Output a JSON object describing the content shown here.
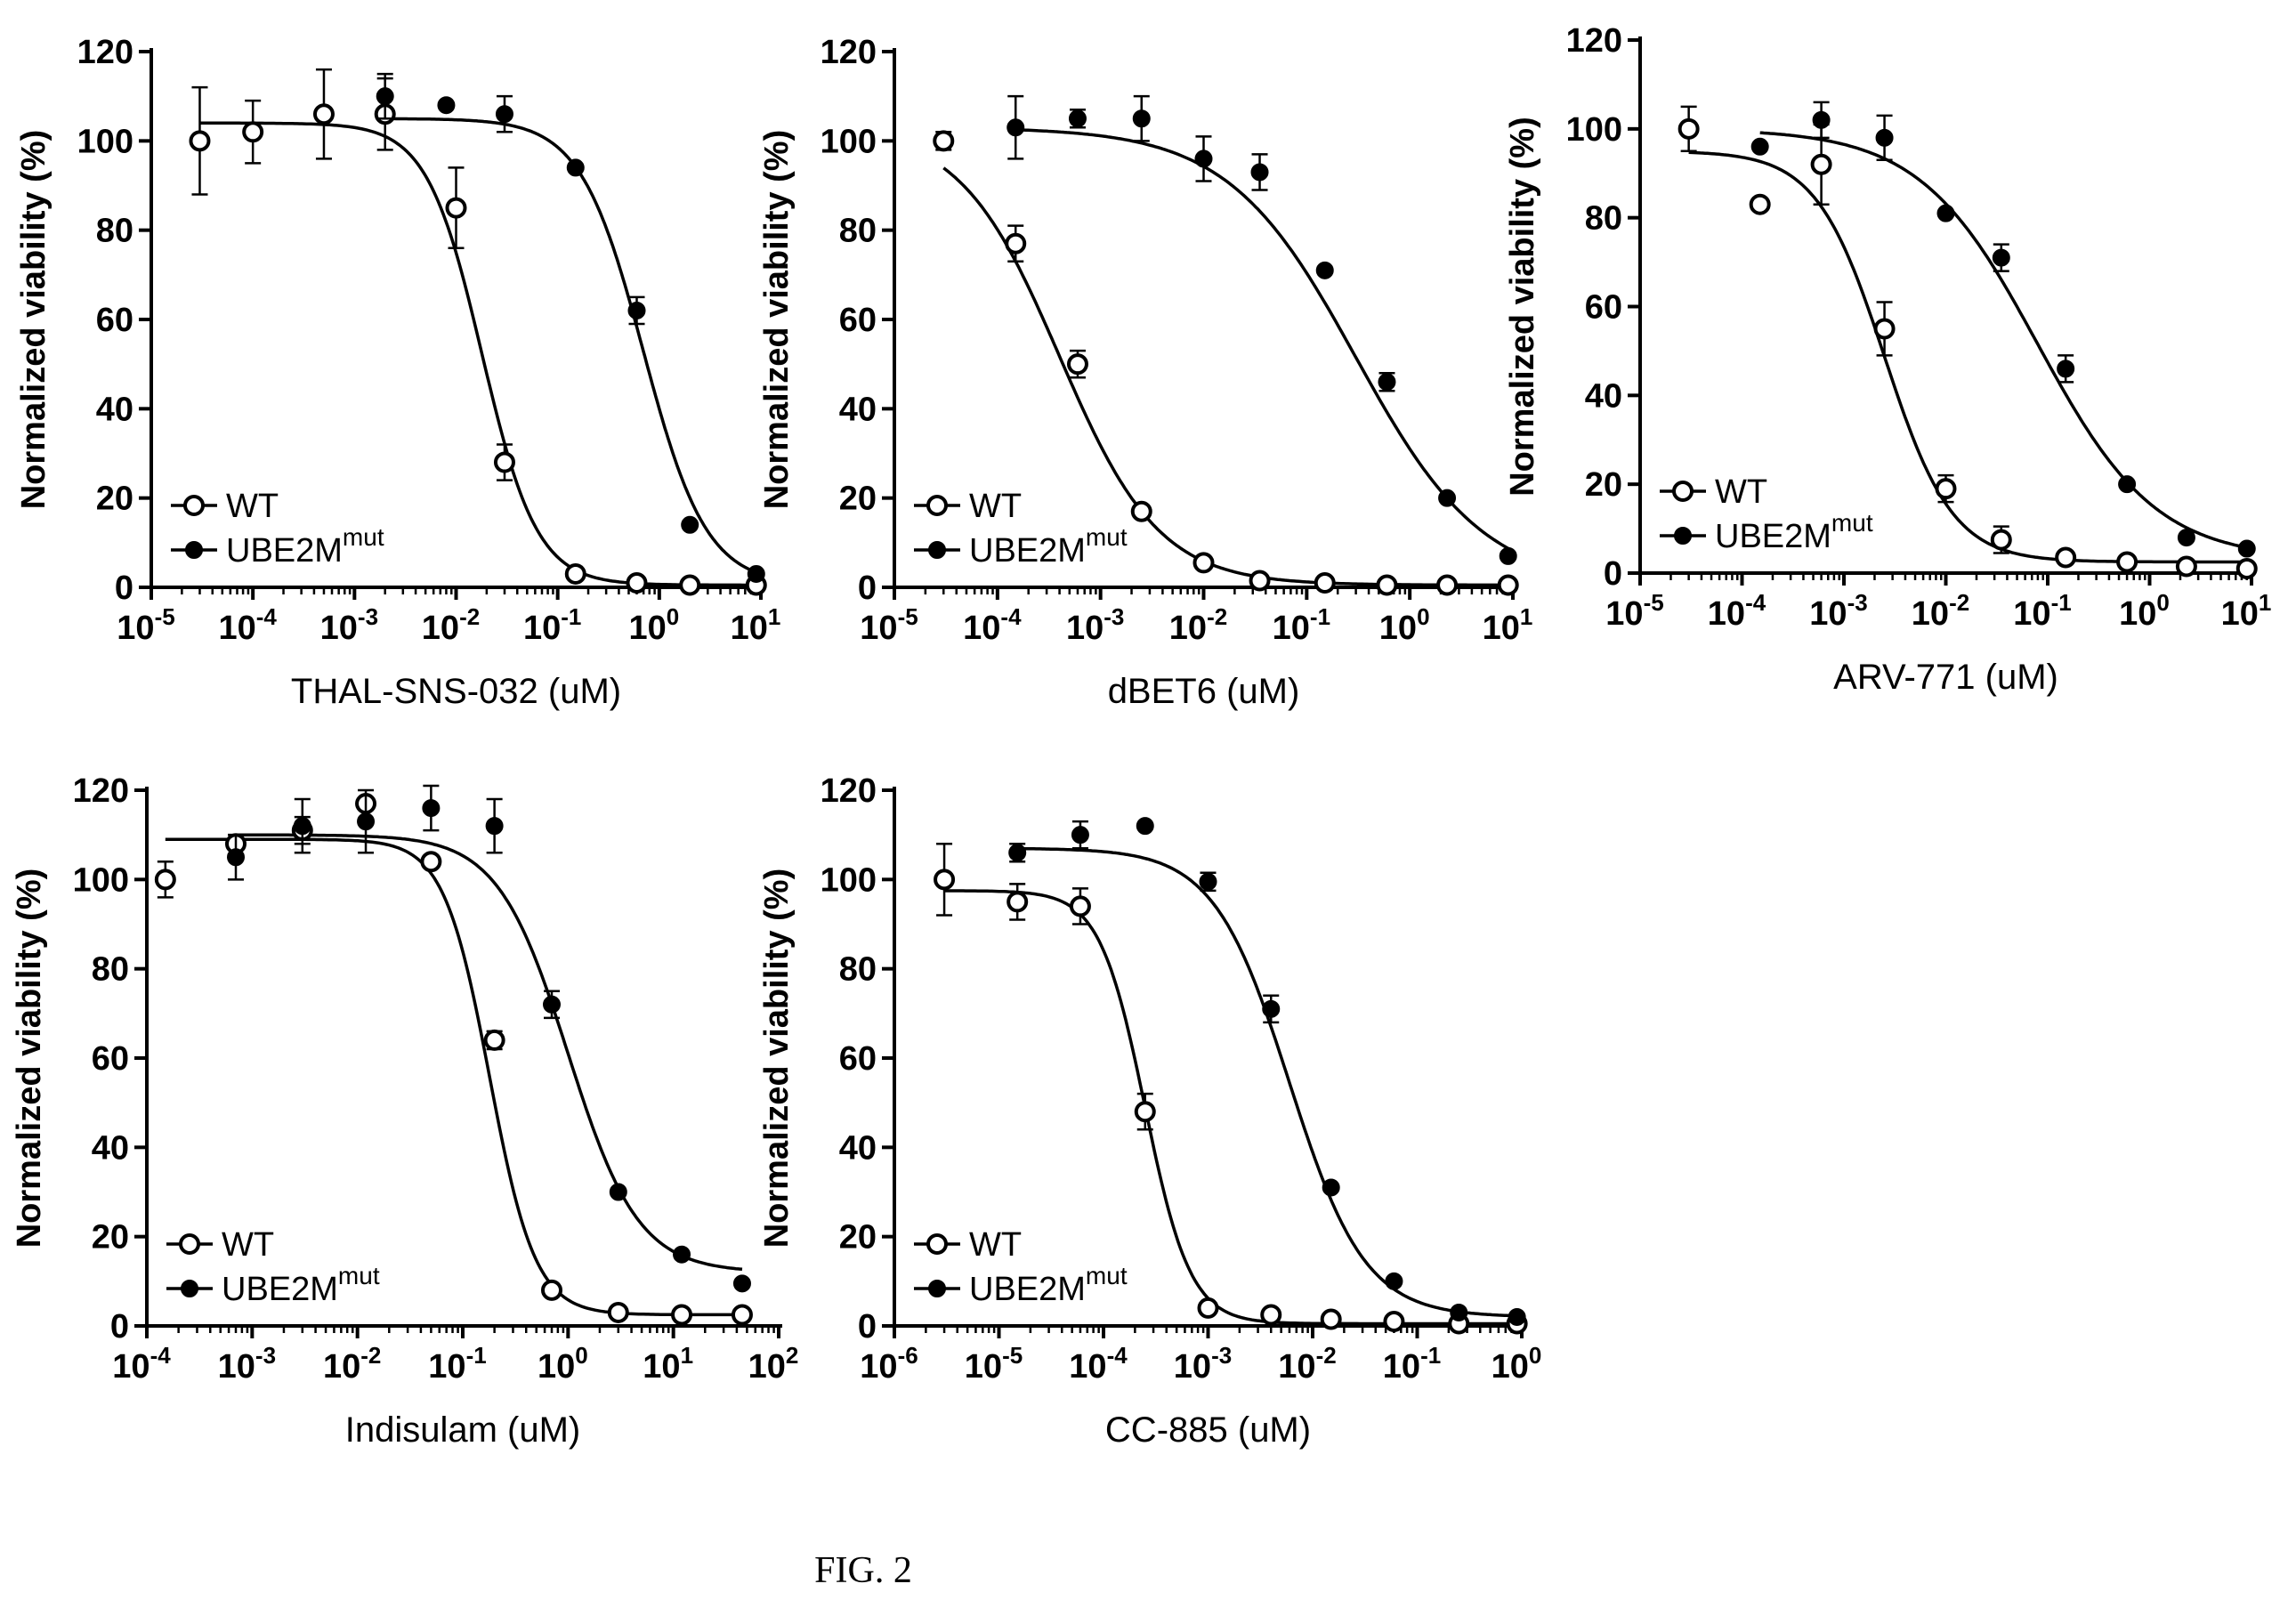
{
  "figure_caption": "FIG. 2",
  "chart_data": [
    {
      "type": "scatter",
      "xlabel": "THAL-SNS-032 (uM)",
      "ylabel": "Normalized viability (%)",
      "x_scale": "log",
      "xlim_exp": [
        -5,
        1
      ],
      "ylim": [
        0,
        120
      ],
      "yticks": [
        0,
        20,
        40,
        60,
        80,
        100,
        120
      ],
      "legend_position": "bottom-left",
      "series": [
        {
          "name": "WT",
          "marker": "open-circle",
          "x": [
            3e-05,
            0.0001,
            0.0005,
            0.002,
            0.01,
            0.03,
            0.15,
            0.6,
            2,
            9
          ],
          "y": [
            100,
            102,
            106,
            106,
            85,
            28,
            3,
            1,
            0.5,
            0.5
          ],
          "err": [
            12,
            7,
            10,
            8,
            9,
            4,
            1,
            1,
            0.5,
            0.5
          ],
          "fit": {
            "top": 104,
            "bottom": 0.5,
            "ec50": 0.018,
            "hill": 1.6
          }
        },
        {
          "name": "UBE2M",
          "name_sup": "mut",
          "marker": "filled-circle",
          "x": [
            0.002,
            0.008,
            0.03,
            0.15,
            0.6,
            2,
            9
          ],
          "y": [
            110,
            108,
            106,
            94,
            62,
            14,
            3
          ],
          "err": [
            5,
            0,
            4,
            0,
            3,
            0,
            0
          ],
          "fit": {
            "top": 105,
            "bottom": 0.5,
            "ec50": 0.7,
            "hill": 1.4
          }
        }
      ]
    },
    {
      "type": "scatter",
      "xlabel": "dBET6 (uM)",
      "ylabel": "Normalized viability (%)",
      "x_scale": "log",
      "xlim_exp": [
        -5,
        1
      ],
      "ylim": [
        0,
        120
      ],
      "yticks": [
        0,
        20,
        40,
        60,
        80,
        100,
        120
      ],
      "legend_position": "bottom-left",
      "series": [
        {
          "name": "WT",
          "marker": "open-circle",
          "x": [
            3e-05,
            0.00015,
            0.0006,
            0.0025,
            0.01,
            0.035,
            0.15,
            0.6,
            2.3,
            9
          ],
          "y": [
            100,
            77,
            50,
            17,
            5.5,
            1.5,
            1,
            0.5,
            0.5,
            0.5
          ],
          "err": [
            2,
            4,
            3,
            0,
            0,
            0,
            0,
            0,
            0,
            0
          ],
          "fit": {
            "top": 103,
            "bottom": 0.5,
            "ec50": 0.0004,
            "hill": 0.9
          }
        },
        {
          "name": "UBE2M",
          "name_sup": "mut",
          "marker": "filled-circle",
          "x": [
            0.00015,
            0.0006,
            0.0025,
            0.01,
            0.035,
            0.15,
            0.6,
            2.3,
            9
          ],
          "y": [
            103,
            105,
            105,
            96,
            93,
            71,
            46,
            20,
            7
          ],
          "err": [
            7,
            2,
            5,
            5,
            4,
            0,
            2,
            0,
            0
          ],
          "fit": {
            "top": 103,
            "bottom": 0,
            "ec50": 0.3,
            "hill": 0.7
          }
        }
      ]
    },
    {
      "type": "scatter",
      "xlabel": "ARV-771 (uM)",
      "ylabel": "Normalized viability (%)",
      "x_scale": "log",
      "xlim_exp": [
        -5,
        1
      ],
      "ylim": [
        0,
        120
      ],
      "yticks": [
        0,
        20,
        40,
        60,
        80,
        100,
        120
      ],
      "legend_position": "bottom-left",
      "series": [
        {
          "name": "WT",
          "marker": "open-circle",
          "x": [
            3e-05,
            0.00015,
            0.0006,
            0.0025,
            0.01,
            0.035,
            0.15,
            0.6,
            2.3,
            9
          ],
          "y": [
            100,
            83,
            92,
            55,
            19,
            7.5,
            3.5,
            2.5,
            1.5,
            1
          ],
          "err": [
            5,
            0,
            9,
            6,
            3,
            3,
            0,
            0,
            0,
            0
          ],
          "fit": {
            "top": 95,
            "bottom": 2.5,
            "ec50": 0.0025,
            "hill": 1.3
          }
        },
        {
          "name": "UBE2M",
          "name_sup": "mut",
          "marker": "filled-circle",
          "x": [
            0.00015,
            0.0006,
            0.0025,
            0.01,
            0.035,
            0.15,
            0.6,
            2.3,
            9
          ],
          "y": [
            96,
            102,
            98,
            81,
            71,
            46,
            20,
            8,
            5.5
          ],
          "err": [
            0,
            4,
            5,
            0,
            3,
            3,
            0,
            0,
            0
          ],
          "fit": {
            "top": 100,
            "bottom": 3,
            "ec50": 0.08,
            "hill": 0.75
          }
        }
      ]
    },
    {
      "type": "scatter",
      "xlabel": "Indisulam (uM)",
      "ylabel": "Normalized viability (%)",
      "x_scale": "log",
      "xlim_exp": [
        -4,
        2
      ],
      "ylim": [
        0,
        120
      ],
      "yticks": [
        0,
        20,
        40,
        60,
        80,
        100,
        120
      ],
      "legend_position": "bottom-left",
      "series": [
        {
          "name": "WT",
          "marker": "open-circle",
          "x": [
            0.00015,
            0.0007,
            0.003,
            0.012,
            0.05,
            0.2,
            0.7,
            3,
            12,
            45
          ],
          "y": [
            100,
            108,
            111,
            117,
            104,
            64,
            8,
            3,
            2.5,
            2.5
          ],
          "err": [
            4,
            0,
            3,
            0,
            0,
            2,
            0,
            0,
            0,
            0
          ],
          "fit": {
            "top": 109,
            "bottom": 2.5,
            "ec50": 0.18,
            "hill": 2.0
          }
        },
        {
          "name": "UBE2M",
          "name_sup": "mut",
          "marker": "filled-circle",
          "x": [
            0.0007,
            0.003,
            0.012,
            0.05,
            0.2,
            0.7,
            3,
            12,
            45
          ],
          "y": [
            105,
            112,
            113,
            116,
            112,
            72,
            30,
            16,
            9.5
          ],
          "err": [
            5,
            6,
            7,
            5,
            6,
            3,
            0,
            0,
            0
          ],
          "fit": {
            "top": 110,
            "bottom": 12,
            "ec50": 1.0,
            "hill": 1.3
          }
        }
      ]
    },
    {
      "type": "scatter",
      "xlabel": "CC-885 (uM)",
      "ylabel": "Normalized viability (%)",
      "x_scale": "log",
      "xlim_exp": [
        -6,
        0
      ],
      "ylim": [
        0,
        120
      ],
      "yticks": [
        0,
        20,
        40,
        60,
        80,
        100,
        120
      ],
      "legend_position": "bottom-left",
      "series": [
        {
          "name": "WT",
          "marker": "open-circle",
          "x": [
            3e-06,
            1.5e-05,
            6e-05,
            0.00025,
            0.001,
            0.004,
            0.015,
            0.06,
            0.25,
            0.9
          ],
          "y": [
            100,
            95,
            94,
            48,
            4,
            2.5,
            1.5,
            1,
            0.5,
            0.5
          ],
          "err": [
            8,
            4,
            4,
            4,
            0,
            0,
            0,
            0,
            0,
            0
          ],
          "fit": {
            "top": 97.5,
            "bottom": 0.5,
            "ec50": 0.00025,
            "hill": 2.0
          }
        },
        {
          "name": "UBE2M",
          "name_sup": "mut",
          "marker": "filled-circle",
          "x": [
            1.5e-05,
            6e-05,
            0.00025,
            0.001,
            0.004,
            0.015,
            0.06,
            0.25,
            0.9
          ],
          "y": [
            106,
            110,
            112,
            99.5,
            71,
            31,
            10,
            3,
            2
          ],
          "err": [
            2,
            3,
            0,
            2,
            3,
            0,
            0,
            0,
            0
          ],
          "fit": {
            "top": 107,
            "bottom": 2,
            "ec50": 0.006,
            "hill": 1.2
          }
        }
      ]
    }
  ]
}
